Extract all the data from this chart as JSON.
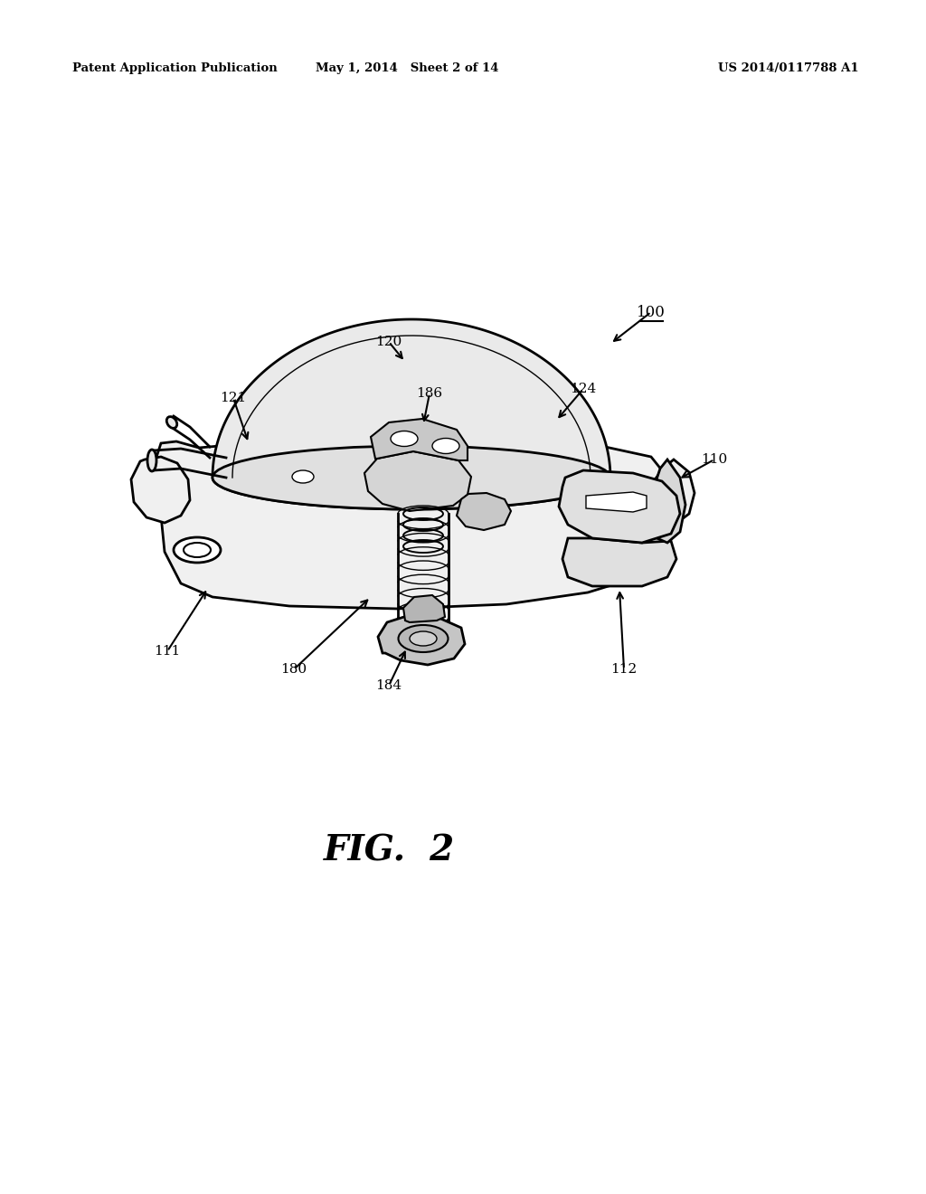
{
  "bg_color": "#ffffff",
  "line_color": "#000000",
  "header_left": "Patent Application Publication",
  "header_mid": "May 1, 2014   Sheet 2 of 14",
  "header_right": "US 2014/0117788 A1",
  "figure_label": "FIG.  2",
  "fig_width": 10.24,
  "fig_height": 13.2,
  "dpi": 100
}
